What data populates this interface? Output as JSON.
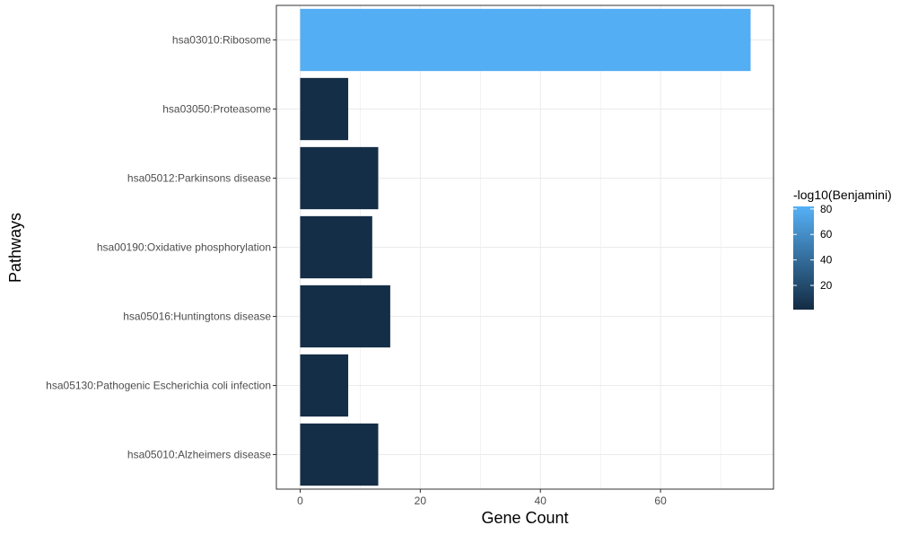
{
  "chart_data": {
    "type": "bar",
    "orientation": "horizontal",
    "title": "",
    "xlabel": "Gene Count",
    "ylabel": "Pathways",
    "xlim": [
      0,
      79
    ],
    "xticks": [
      "0",
      "20",
      "40",
      "60"
    ],
    "categories": [
      "hsa03010:Ribosome",
      "hsa03050:Proteasome",
      "hsa05012:Parkinsons disease",
      "hsa00190:Oxidative phosphorylation",
      "hsa05016:Huntingtons disease",
      "hsa05130:Pathogenic Escherichia coli infection",
      "hsa05010:Alzheimers disease"
    ],
    "values": [
      75,
      8,
      13,
      12,
      15,
      8,
      13
    ],
    "color_values": [
      80,
      3,
      3,
      3,
      3,
      3,
      3
    ],
    "grid": true,
    "legend": {
      "title": "-log10(Benjamini)",
      "position": "right",
      "range": [
        1,
        82
      ],
      "ticks": [
        "80",
        "60",
        "40",
        "20"
      ],
      "low_color": "#132B43",
      "high_color": "#56B1F7"
    }
  }
}
